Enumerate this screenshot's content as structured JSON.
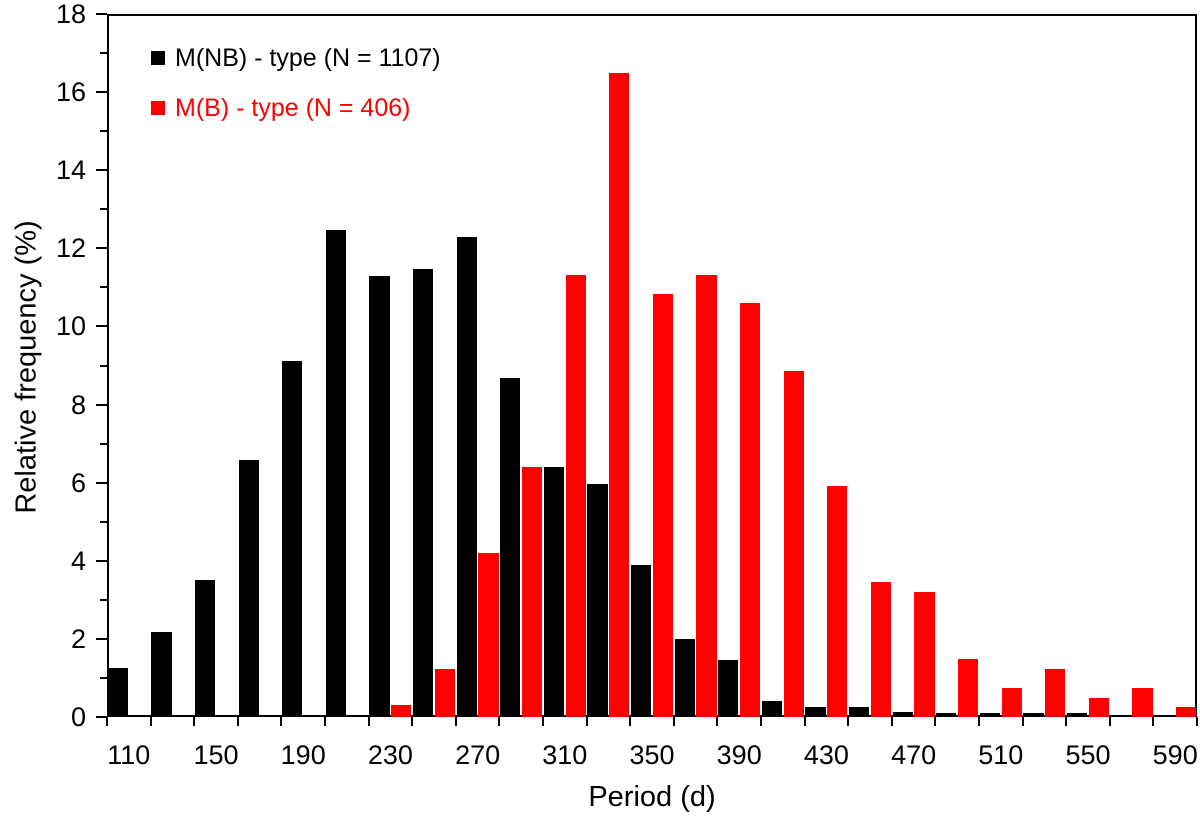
{
  "chart_data": {
    "type": "bar",
    "title": "",
    "xlabel": "Period (d)",
    "ylabel": "Relative frequency (%)",
    "categories": [
      110,
      130,
      150,
      170,
      190,
      210,
      230,
      250,
      270,
      290,
      310,
      330,
      350,
      370,
      390,
      410,
      430,
      450,
      470,
      490,
      510,
      530,
      550,
      570,
      590
    ],
    "series": [
      {
        "name": "M(NB) - type (N = 1107)",
        "color": "#000000",
        "values": [
          1.26,
          2.17,
          3.52,
          6.59,
          9.12,
          12.47,
          11.29,
          11.47,
          12.29,
          8.67,
          6.41,
          5.96,
          3.88,
          1.99,
          1.45,
          0.42,
          0.26,
          0.26,
          0.12,
          0.1,
          0.1,
          0.1,
          0.1,
          0,
          0
        ]
      },
      {
        "name": "M(B) - type (N = 406)",
        "color": "#ff0000",
        "values": [
          0,
          0,
          0,
          0,
          0,
          0,
          0.3,
          1.23,
          4.19,
          6.4,
          11.33,
          16.5,
          10.84,
          11.33,
          10.59,
          8.87,
          5.91,
          3.45,
          3.2,
          1.48,
          0.74,
          1.23,
          0.49,
          0.74,
          0.25
        ]
      }
    ],
    "ylim": [
      0,
      18
    ],
    "y_tick_labels": [
      "0",
      "2",
      "4",
      "6",
      "8",
      "10",
      "12",
      "14",
      "16",
      "18"
    ],
    "y_major_step": 2,
    "y_minor_step": 1,
    "x_tick_labels": [
      "110",
      "150",
      "190",
      "230",
      "270",
      "310",
      "350",
      "390",
      "430",
      "470",
      "510",
      "550",
      "590"
    ],
    "x_label_every_bins": 2,
    "bin_width_d": 20,
    "grid": "off",
    "legend_position": "top-left-inside",
    "plot_border": "box"
  },
  "colors": {
    "background": "#ffffff",
    "axis": "#000000",
    "text": "#000000",
    "series_black": "#000000",
    "series_red": "#ff0000"
  }
}
